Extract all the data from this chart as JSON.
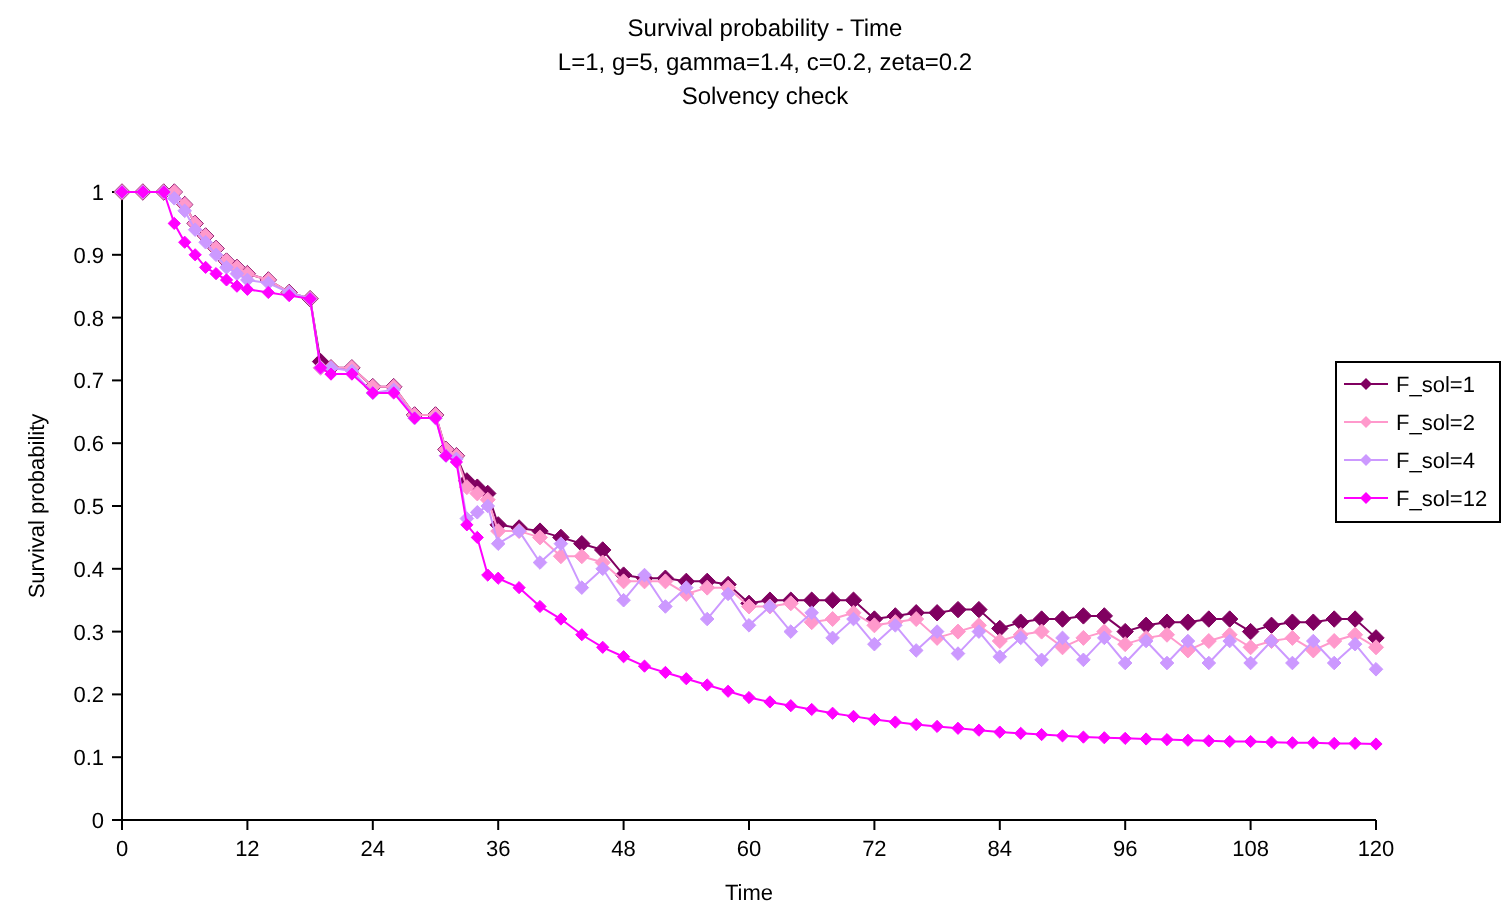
{
  "chart_data": {
    "type": "line",
    "title": "Survival probability - Time",
    "subtitle": "L=1, g=5, gamma=1.4, c=0.2, zeta=0.2\nSolvency check",
    "xlabel": "Time",
    "ylabel": "Survival probability",
    "x": [
      0,
      2,
      4,
      5,
      6,
      7,
      8,
      9,
      10,
      11,
      12,
      14,
      16,
      18,
      19,
      20,
      22,
      24,
      26,
      28,
      30,
      31,
      32,
      33,
      34,
      35,
      36,
      38,
      40,
      42,
      44,
      46,
      48,
      50,
      52,
      54,
      56,
      58,
      60,
      62,
      64,
      66,
      68,
      70,
      72,
      74,
      76,
      78,
      80,
      82,
      84,
      86,
      88,
      90,
      92,
      94,
      96,
      98,
      100,
      102,
      104,
      106,
      108,
      110,
      112,
      114,
      116,
      118,
      120
    ],
    "series": [
      {
        "name": "F_sol=1",
        "color": "#800060",
        "values": [
          1,
          1,
          1,
          1,
          0.98,
          0.95,
          0.93,
          0.91,
          0.89,
          0.88,
          0.87,
          0.86,
          0.84,
          0.83,
          0.73,
          0.72,
          0.72,
          0.69,
          0.69,
          0.645,
          0.645,
          0.59,
          0.58,
          0.54,
          0.53,
          0.52,
          0.47,
          0.465,
          0.46,
          0.45,
          0.44,
          0.43,
          0.39,
          0.385,
          0.385,
          0.38,
          0.38,
          0.375,
          0.345,
          0.35,
          0.35,
          0.35,
          0.35,
          0.35,
          0.32,
          0.325,
          0.33,
          0.33,
          0.335,
          0.335,
          0.305,
          0.315,
          0.32,
          0.32,
          0.325,
          0.325,
          0.3,
          0.31,
          0.315,
          0.315,
          0.32,
          0.32,
          0.3,
          0.31,
          0.315,
          0.315,
          0.32,
          0.32,
          0.29
        ]
      },
      {
        "name": "F_sol=2",
        "color": "#ff99cc",
        "values": [
          1,
          1,
          1,
          1,
          0.98,
          0.95,
          0.93,
          0.91,
          0.89,
          0.88,
          0.87,
          0.86,
          0.84,
          0.83,
          0.72,
          0.72,
          0.72,
          0.69,
          0.69,
          0.645,
          0.645,
          0.59,
          0.58,
          0.53,
          0.52,
          0.51,
          0.46,
          0.46,
          0.45,
          0.42,
          0.42,
          0.41,
          0.38,
          0.38,
          0.38,
          0.36,
          0.37,
          0.37,
          0.34,
          0.34,
          0.345,
          0.315,
          0.32,
          0.33,
          0.31,
          0.315,
          0.32,
          0.29,
          0.3,
          0.31,
          0.285,
          0.295,
          0.3,
          0.275,
          0.29,
          0.3,
          0.28,
          0.29,
          0.295,
          0.27,
          0.285,
          0.295,
          0.275,
          0.285,
          0.29,
          0.27,
          0.285,
          0.295,
          0.275
        ]
      },
      {
        "name": "F_sol=4",
        "color": "#cc99ff",
        "values": [
          1,
          1,
          1,
          0.99,
          0.97,
          0.94,
          0.92,
          0.9,
          0.88,
          0.87,
          0.86,
          0.855,
          0.84,
          0.83,
          0.72,
          0.72,
          0.715,
          0.68,
          0.685,
          0.64,
          0.64,
          0.58,
          0.575,
          0.48,
          0.49,
          0.5,
          0.44,
          0.46,
          0.41,
          0.44,
          0.37,
          0.4,
          0.35,
          0.39,
          0.34,
          0.37,
          0.32,
          0.36,
          0.31,
          0.34,
          0.3,
          0.33,
          0.29,
          0.32,
          0.28,
          0.31,
          0.27,
          0.3,
          0.265,
          0.3,
          0.26,
          0.29,
          0.255,
          0.29,
          0.255,
          0.29,
          0.25,
          0.285,
          0.25,
          0.285,
          0.25,
          0.285,
          0.25,
          0.285,
          0.25,
          0.285,
          0.25,
          0.28,
          0.24
        ]
      },
      {
        "name": "F_sol=12",
        "color": "#ff00ff",
        "values": [
          1,
          1,
          1,
          0.95,
          0.92,
          0.9,
          0.88,
          0.87,
          0.86,
          0.85,
          0.845,
          0.84,
          0.835,
          0.83,
          0.72,
          0.71,
          0.71,
          0.68,
          0.68,
          0.64,
          0.64,
          0.58,
          0.57,
          0.47,
          0.45,
          0.39,
          0.385,
          0.37,
          0.34,
          0.32,
          0.295,
          0.275,
          0.26,
          0.245,
          0.235,
          0.225,
          0.215,
          0.205,
          0.195,
          0.188,
          0.182,
          0.176,
          0.17,
          0.165,
          0.16,
          0.156,
          0.152,
          0.149,
          0.146,
          0.143,
          0.14,
          0.138,
          0.136,
          0.134,
          0.132,
          0.131,
          0.13,
          0.129,
          0.128,
          0.127,
          0.126,
          0.125,
          0.125,
          0.124,
          0.123,
          0.123,
          0.122,
          0.122,
          0.121
        ]
      }
    ],
    "xlim": [
      0,
      120
    ],
    "xticks": [
      0,
      12,
      24,
      36,
      48,
      60,
      72,
      84,
      96,
      108,
      120
    ],
    "ylim": [
      0,
      1
    ],
    "yticks": [
      0,
      0.1,
      0.2,
      0.3,
      0.4,
      0.5,
      0.6,
      0.7,
      0.8,
      0.9,
      1
    ],
    "legend": "right",
    "marker": "diamond",
    "line_style": "solid",
    "grid": false
  }
}
